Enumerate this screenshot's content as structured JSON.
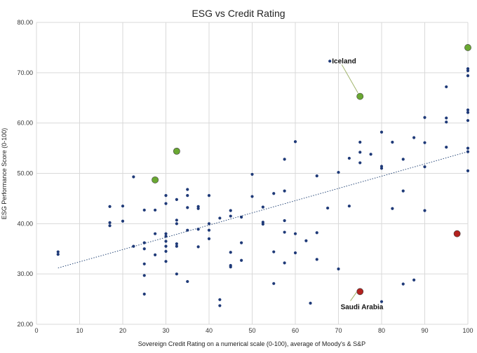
{
  "chart_data": {
    "type": "scatter",
    "title": "ESG vs Credit Rating",
    "xlabel": "Sovereign Credit Rating on a numerical scale (0-100), average of Moody's & S&P",
    "ylabel": "ESG Performance Score (0-100)",
    "xlim": [
      0,
      100
    ],
    "ylim": [
      20,
      80
    ],
    "xticks": [
      "0",
      "10",
      "20",
      "30",
      "40",
      "50",
      "60",
      "70",
      "80",
      "90",
      "100"
    ],
    "yticks": [
      "20.00",
      "30.00",
      "40.00",
      "50.00",
      "60.00",
      "70.00",
      "80.00"
    ],
    "grid": true,
    "trendline": {
      "style": "dotted",
      "x": [
        5,
        100
      ],
      "y": [
        31.2,
        54.3
      ]
    },
    "colors": {
      "points": "#1f3a78",
      "highlight_green": "#6aa832",
      "highlight_red": "#b3221f",
      "trendline": "#2a4a7a",
      "grid": "#d9d9d9"
    },
    "series": [
      {
        "color": "#1f3a78",
        "points": [
          [
            5,
            34.4
          ],
          [
            5,
            33.9
          ],
          [
            17,
            43.4
          ],
          [
            17,
            40.2
          ],
          [
            17,
            39.6
          ],
          [
            20,
            43.5
          ],
          [
            20,
            40.5
          ],
          [
            22.5,
            49.3
          ],
          [
            22.5,
            35.5
          ],
          [
            25,
            42.7
          ],
          [
            25,
            36.2
          ],
          [
            25,
            35.0
          ],
          [
            25,
            32.0
          ],
          [
            25,
            29.7
          ],
          [
            25,
            26.0
          ],
          [
            27.5,
            42.7
          ],
          [
            27.5,
            38.0
          ],
          [
            27.5,
            33.8
          ],
          [
            30,
            45.6
          ],
          [
            30,
            44.0
          ],
          [
            30,
            38.0
          ],
          [
            30,
            37.5
          ],
          [
            30,
            36.5
          ],
          [
            30,
            35.5
          ],
          [
            30,
            34.5
          ],
          [
            30,
            32.5
          ],
          [
            32.5,
            44.8
          ],
          [
            32.5,
            40.7
          ],
          [
            32.5,
            40.0
          ],
          [
            32.5,
            36.0
          ],
          [
            32.5,
            35.5
          ],
          [
            32.5,
            30.0
          ],
          [
            35,
            46.8
          ],
          [
            35,
            45.6
          ],
          [
            35,
            43.2
          ],
          [
            35,
            38.7
          ],
          [
            35,
            28.5
          ],
          [
            37.5,
            43.4
          ],
          [
            37.5,
            43.0
          ],
          [
            37.5,
            38.9
          ],
          [
            37.5,
            35.4
          ],
          [
            40,
            45.6
          ],
          [
            40,
            40.0
          ],
          [
            40,
            38.7
          ],
          [
            40,
            37.0
          ],
          [
            42.5,
            41.1
          ],
          [
            42.5,
            24.9
          ],
          [
            42.5,
            23.7
          ],
          [
            45,
            42.6
          ],
          [
            45,
            41.5
          ],
          [
            45,
            34.3
          ],
          [
            45,
            31.7
          ],
          [
            45,
            31.4
          ],
          [
            47.5,
            41.3
          ],
          [
            47.5,
            36.2
          ],
          [
            47.5,
            32.7
          ],
          [
            50,
            49.8
          ],
          [
            50,
            45.4
          ],
          [
            52.5,
            43.3
          ],
          [
            52.5,
            40.3
          ],
          [
            52.5,
            39.9
          ],
          [
            55,
            46.0
          ],
          [
            55,
            34.4
          ],
          [
            55,
            28.1
          ],
          [
            57.5,
            52.8
          ],
          [
            57.5,
            46.5
          ],
          [
            57.5,
            40.6
          ],
          [
            57.5,
            38.3
          ],
          [
            57.5,
            32.2
          ],
          [
            60,
            56.3
          ],
          [
            60,
            38.0
          ],
          [
            60,
            34.2
          ],
          [
            62.5,
            36.6
          ],
          [
            63.5,
            24.2
          ],
          [
            65,
            49.5
          ],
          [
            65,
            38.2
          ],
          [
            65,
            32.9
          ],
          [
            67.5,
            43.1
          ],
          [
            68,
            72.3
          ],
          [
            70,
            50.2
          ],
          [
            70,
            31.0
          ],
          [
            72.5,
            53.0
          ],
          [
            72.5,
            43.5
          ],
          [
            75,
            56.2
          ],
          [
            75,
            54.2
          ],
          [
            75,
            52.1
          ],
          [
            77.5,
            53.8
          ],
          [
            80,
            58.2
          ],
          [
            80,
            51.4
          ],
          [
            80,
            51.0
          ],
          [
            80,
            24.5
          ],
          [
            82.5,
            56.2
          ],
          [
            82.5,
            43.0
          ],
          [
            85,
            52.8
          ],
          [
            85,
            46.5
          ],
          [
            85,
            28.0
          ],
          [
            87.5,
            57.1
          ],
          [
            87.5,
            28.8
          ],
          [
            90,
            61.1
          ],
          [
            90,
            56.1
          ],
          [
            90,
            51.3
          ],
          [
            90,
            42.6
          ],
          [
            95,
            67.2
          ],
          [
            95,
            61.0
          ],
          [
            95,
            60.2
          ],
          [
            95,
            55.2
          ],
          [
            100,
            70.8
          ],
          [
            100,
            70.4
          ],
          [
            100,
            69.4
          ],
          [
            100,
            62.6
          ],
          [
            100,
            62.1
          ],
          [
            100,
            60.5
          ],
          [
            100,
            55.0
          ],
          [
            100,
            54.3
          ],
          [
            100,
            50.5
          ]
        ]
      },
      {
        "color": "#6aa832",
        "points": [
          [
            27.5,
            48.7
          ],
          [
            32.5,
            54.4
          ],
          [
            75,
            65.3
          ],
          [
            100,
            75.0
          ]
        ]
      },
      {
        "color": "#b3221f",
        "points": [
          [
            75,
            26.5
          ],
          [
            97.5,
            38.0
          ]
        ]
      }
    ],
    "annotations": [
      {
        "text": "Iceland",
        "point": [
          75,
          65.3
        ],
        "label_at": [
          68.5,
          72.3
        ]
      },
      {
        "text": "Saudi Arabia",
        "point": [
          75,
          26.5
        ],
        "label_at": [
          70.5,
          23.4
        ]
      }
    ]
  }
}
